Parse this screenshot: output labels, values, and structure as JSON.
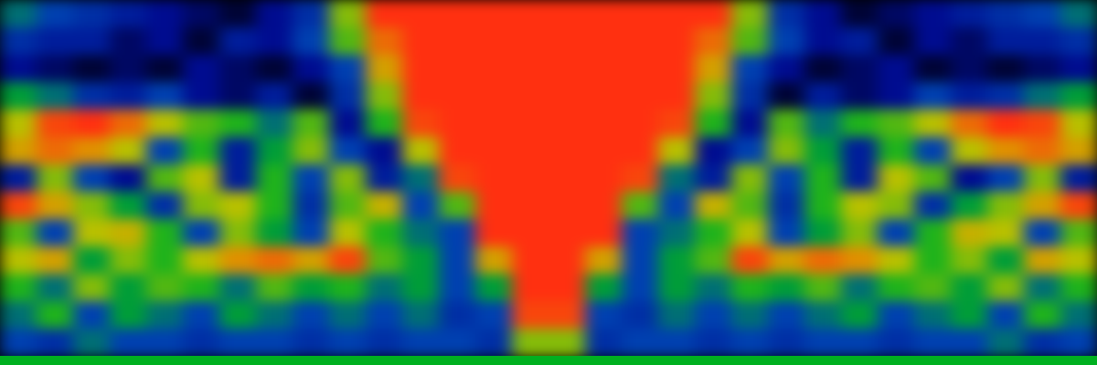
{
  "chart_data": {
    "type": "heatmap",
    "tick_labels": false,
    "zlim": [
      0,
      1
    ],
    "cells": [
      [
        0.35,
        0.3,
        0.25,
        0.2,
        0.15,
        0.1,
        0.05,
        0.15,
        0.25,
        0.55,
        0.9,
        1,
        1,
        1,
        1,
        1,
        1,
        1,
        1,
        0.9,
        0.55,
        0.25,
        0.15,
        0.05,
        0.1,
        0.15,
        0.2,
        0.25,
        0.3,
        0.35
      ],
      [
        0.25,
        0.2,
        0.2,
        0.1,
        0.15,
        0.05,
        0.2,
        0.15,
        0.3,
        0.5,
        0.8,
        1,
        1,
        1,
        1,
        1,
        1,
        1,
        1,
        0.8,
        0.5,
        0.3,
        0.15,
        0.2,
        0.05,
        0.15,
        0.1,
        0.2,
        0.2,
        0.25
      ],
      [
        0.15,
        0.1,
        0.05,
        0.1,
        0.05,
        0.15,
        0.1,
        0.05,
        0.15,
        0.3,
        0.7,
        1,
        1,
        1,
        1,
        1,
        1,
        1,
        1,
        0.7,
        0.3,
        0.15,
        0.05,
        0.1,
        0.15,
        0.05,
        0.1,
        0.05,
        0.1,
        0.15
      ],
      [
        0.4,
        0.35,
        0.25,
        0.2,
        0.3,
        0.15,
        0.1,
        0.2,
        0.05,
        0.25,
        0.55,
        1,
        1,
        1,
        1,
        1,
        1,
        1,
        1,
        0.55,
        0.25,
        0.05,
        0.2,
        0.1,
        0.15,
        0.3,
        0.2,
        0.25,
        0.35,
        0.4
      ],
      [
        0.6,
        0.85,
        0.9,
        0.8,
        0.6,
        0.5,
        0.45,
        0.35,
        0.5,
        0.15,
        0.45,
        0.85,
        1,
        1,
        1,
        1,
        1,
        1,
        0.85,
        0.45,
        0.15,
        0.5,
        0.35,
        0.45,
        0.5,
        0.6,
        0.8,
        0.9,
        0.85,
        0.6
      ],
      [
        0.7,
        0.8,
        0.75,
        0.6,
        0.3,
        0.45,
        0.2,
        0.4,
        0.55,
        0.3,
        0.15,
        0.6,
        1,
        1,
        1,
        1,
        1,
        1,
        0.6,
        0.15,
        0.3,
        0.55,
        0.4,
        0.2,
        0.45,
        0.3,
        0.6,
        0.75,
        0.8,
        0.7
      ],
      [
        0.2,
        0.55,
        0.3,
        0.15,
        0.5,
        0.6,
        0.2,
        0.45,
        0.3,
        0.55,
        0.2,
        0.35,
        0.85,
        1,
        1,
        1,
        1,
        0.85,
        0.35,
        0.2,
        0.55,
        0.3,
        0.45,
        0.2,
        0.6,
        0.5,
        0.15,
        0.3,
        0.55,
        0.2
      ],
      [
        0.85,
        0.7,
        0.55,
        0.4,
        0.25,
        0.55,
        0.6,
        0.45,
        0.25,
        0.5,
        0.65,
        0.3,
        0.5,
        1,
        1,
        1,
        1,
        0.5,
        0.3,
        0.65,
        0.5,
        0.25,
        0.45,
        0.6,
        0.55,
        0.25,
        0.4,
        0.55,
        0.7,
        0.85
      ],
      [
        0.5,
        0.3,
        0.6,
        0.65,
        0.45,
        0.3,
        0.55,
        0.4,
        0.3,
        0.6,
        0.45,
        0.35,
        0.3,
        0.95,
        1,
        1,
        0.95,
        0.3,
        0.35,
        0.45,
        0.6,
        0.3,
        0.4,
        0.55,
        0.3,
        0.45,
        0.65,
        0.6,
        0.3,
        0.5
      ],
      [
        0.6,
        0.7,
        0.4,
        0.55,
        0.45,
        0.6,
        0.75,
        0.8,
        0.7,
        0.85,
        0.5,
        0.4,
        0.3,
        0.7,
        1,
        1,
        0.7,
        0.3,
        0.4,
        0.5,
        0.85,
        0.7,
        0.8,
        0.75,
        0.6,
        0.45,
        0.55,
        0.4,
        0.7,
        0.6
      ],
      [
        0.45,
        0.35,
        0.55,
        0.4,
        0.5,
        0.45,
        0.35,
        0.5,
        0.4,
        0.45,
        0.35,
        0.4,
        0.3,
        0.4,
        1,
        1,
        0.4,
        0.3,
        0.4,
        0.35,
        0.45,
        0.4,
        0.5,
        0.35,
        0.45,
        0.5,
        0.4,
        0.55,
        0.35,
        0.45
      ],
      [
        0.35,
        0.45,
        0.3,
        0.4,
        0.35,
        0.3,
        0.4,
        0.35,
        0.3,
        0.35,
        0.3,
        0.35,
        0.25,
        0.3,
        0.85,
        0.85,
        0.3,
        0.25,
        0.35,
        0.3,
        0.35,
        0.3,
        0.35,
        0.4,
        0.3,
        0.35,
        0.4,
        0.3,
        0.45,
        0.35
      ],
      [
        0.3,
        0.25,
        0.35,
        0.3,
        0.3,
        0.25,
        0.3,
        0.3,
        0.25,
        0.3,
        0.25,
        0.3,
        0.3,
        0.25,
        0.55,
        0.55,
        0.25,
        0.3,
        0.3,
        0.25,
        0.3,
        0.25,
        0.3,
        0.3,
        0.25,
        0.3,
        0.3,
        0.35,
        0.25,
        0.3
      ]
    ]
  }
}
